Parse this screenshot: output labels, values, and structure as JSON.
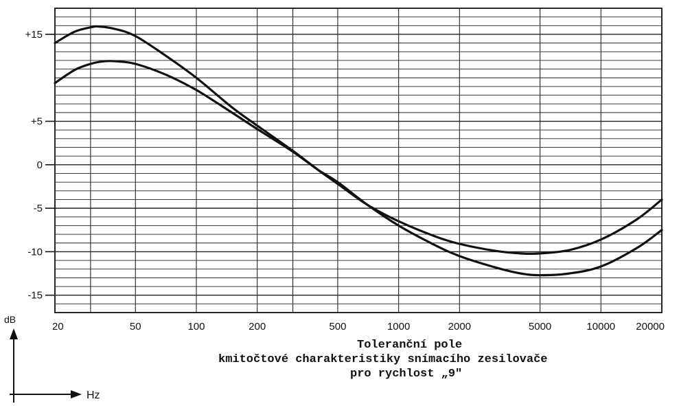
{
  "chart_data": {
    "type": "line",
    "x_scale": "log",
    "x_ticks": [
      {
        "value": 20,
        "label": "20"
      },
      {
        "value": 50,
        "label": "50"
      },
      {
        "value": 100,
        "label": "100"
      },
      {
        "value": 200,
        "label": "200"
      },
      {
        "value": 500,
        "label": "500"
      },
      {
        "value": 1000,
        "label": "1000"
      },
      {
        "value": 2000,
        "label": "2000"
      },
      {
        "value": 5000,
        "label": "5000"
      },
      {
        "value": 10000,
        "label": "10000"
      },
      {
        "value": 20000,
        "label": "20000"
      }
    ],
    "x_grid_values": [
      20,
      30,
      50,
      100,
      200,
      300,
      500,
      1000,
      2000,
      5000,
      10000,
      20000
    ],
    "y_ticks": [
      {
        "value": 15,
        "label": "+15"
      },
      {
        "value": 5,
        "label": "+5"
      },
      {
        "value": 0,
        "label": "0"
      },
      {
        "value": -5,
        "label": "-5"
      },
      {
        "value": -10,
        "label": "-10"
      },
      {
        "value": -15,
        "label": "-15"
      }
    ],
    "y_grid_step": 1,
    "ylim": [
      -17,
      18
    ],
    "xlim": [
      20,
      20000
    ],
    "grid": true,
    "ylabel": "dB",
    "xlabel": "Hz",
    "series": [
      {
        "x": [
          20,
          25,
          30,
          33,
          40,
          50,
          70,
          100,
          150,
          200,
          300,
          400,
          500,
          700,
          1000,
          1500,
          2000,
          3000,
          4000,
          5000,
          7000,
          10000,
          15000,
          20000
        ],
        "y": [
          14,
          15.3,
          15.8,
          15.9,
          15.6,
          14.8,
          12.6,
          10,
          6.6,
          4.5,
          1.6,
          -0.6,
          -2.2,
          -4.6,
          -6.5,
          -8.2,
          -9.1,
          -9.9,
          -10.2,
          -10.2,
          -9.8,
          -8.6,
          -6.3,
          -4
        ]
      },
      {
        "x": [
          20,
          25,
          30,
          35,
          40,
          50,
          70,
          100,
          150,
          200,
          300,
          400,
          500,
          700,
          1000,
          1500,
          2000,
          3000,
          4000,
          5000,
          7000,
          10000,
          15000,
          20000
        ],
        "y": [
          9.4,
          10.9,
          11.6,
          11.9,
          11.9,
          11.6,
          10.4,
          8.6,
          6,
          4.1,
          1.5,
          -0.6,
          -2,
          -4.6,
          -7,
          -9.2,
          -10.5,
          -11.8,
          -12.5,
          -12.7,
          -12.5,
          -11.7,
          -9.6,
          -7.5
        ]
      }
    ],
    "caption": [
      "Toleranční pole",
      "kmitočtové charakteristiky snímacího zesilovače",
      "pro rychlost „9\""
    ],
    "line_color": "#111111"
  }
}
